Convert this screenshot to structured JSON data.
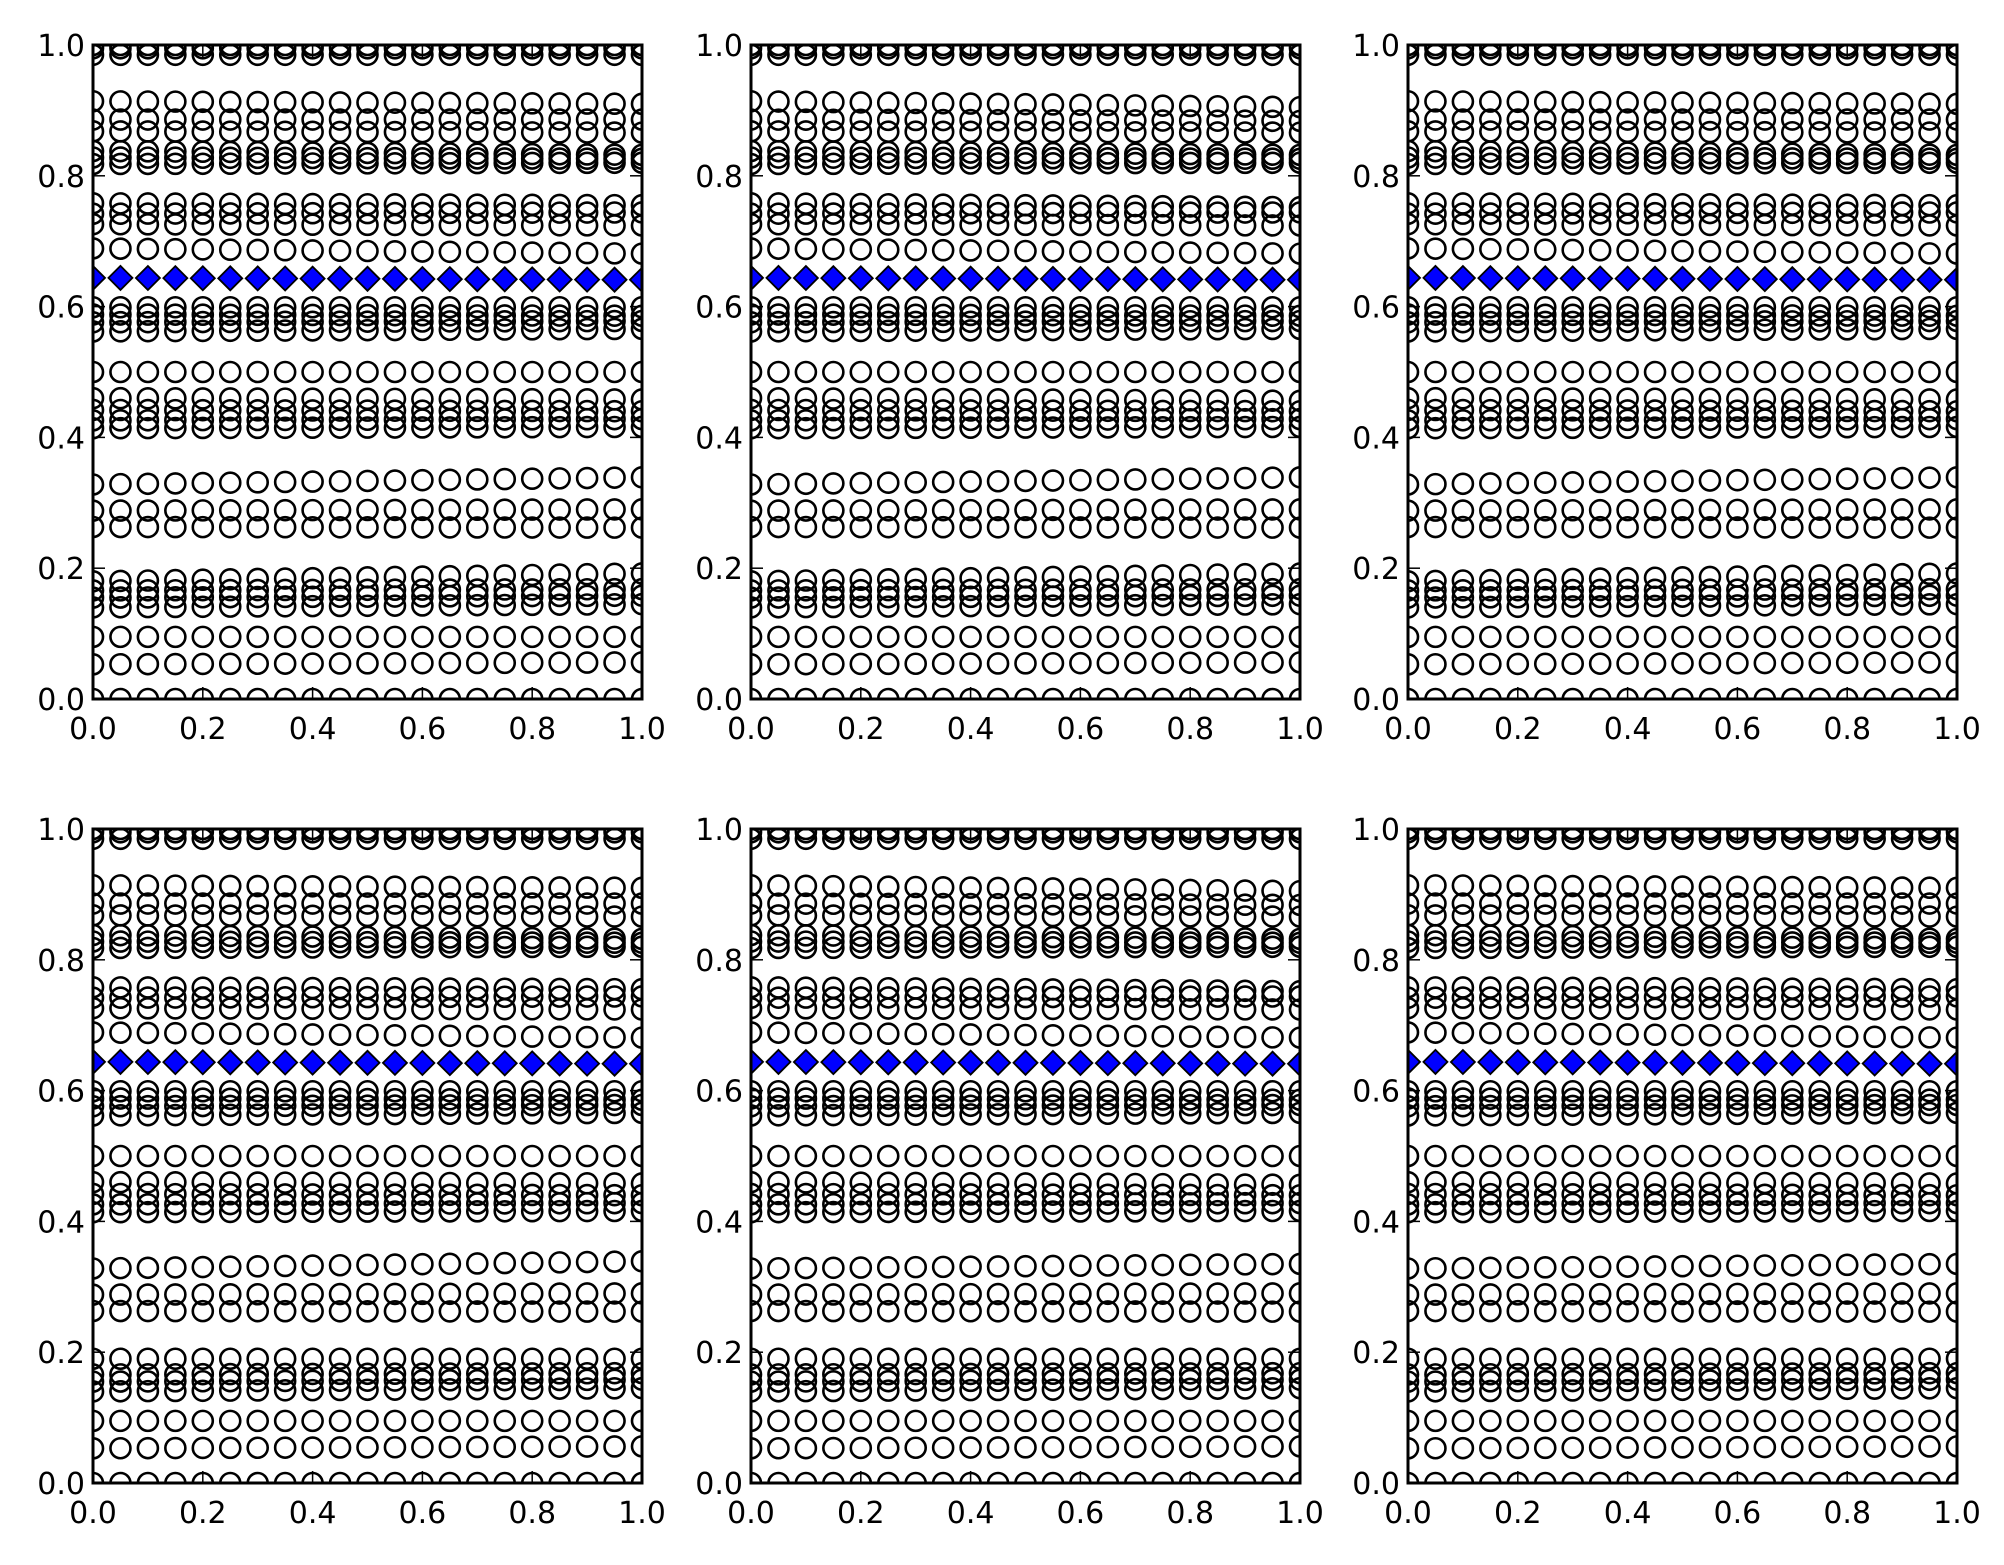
{
  "chart_data": [
    {
      "type": "scatter",
      "xlim": [
        0,
        1
      ],
      "ylim": [
        0,
        1
      ],
      "grid": false,
      "xticks": [
        "0.0",
        "0.2",
        "0.4",
        "0.6",
        "0.8",
        "1.0"
      ],
      "yticks": [
        "0.0",
        "0.2",
        "0.4",
        "0.6",
        "0.8",
        "1.0"
      ],
      "x": [
        0,
        0.05,
        0.1,
        0.15,
        0.2,
        0.25,
        0.3,
        0.35,
        0.4,
        0.45,
        0.5,
        0.55,
        0.6,
        0.65,
        0.7,
        0.75,
        0.8,
        0.85,
        0.9,
        0.95,
        1.0
      ],
      "circle_rows_y_at_x0_x1": [
        [
          1.0,
          1.0
        ],
        [
          0.995,
          0.995
        ],
        [
          0.985,
          0.985
        ],
        [
          0.914,
          0.91
        ],
        [
          0.886,
          0.886
        ],
        [
          0.868,
          0.866
        ],
        [
          0.838,
          0.832
        ],
        [
          0.828,
          0.826
        ],
        [
          0.818,
          0.82
        ],
        [
          0.758,
          0.755
        ],
        [
          0.742,
          0.744
        ],
        [
          0.726,
          0.724
        ],
        [
          0.689,
          0.681
        ],
        [
          0.599,
          0.599
        ],
        [
          0.588,
          0.586
        ],
        [
          0.576,
          0.578
        ],
        [
          0.562,
          0.566
        ],
        [
          0.5,
          0.5
        ],
        [
          0.46,
          0.458
        ],
        [
          0.442,
          0.44
        ],
        [
          0.426,
          0.428
        ],
        [
          0.414,
          0.416
        ],
        [
          0.328,
          0.339
        ],
        [
          0.288,
          0.29
        ],
        [
          0.263,
          0.262
        ],
        [
          0.18,
          0.192
        ],
        [
          0.166,
          0.168
        ],
        [
          0.155,
          0.158
        ],
        [
          0.14,
          0.145
        ],
        [
          0.095,
          0.095
        ],
        [
          0.053,
          0.056
        ],
        [
          0.0,
          0.0
        ]
      ],
      "diamond_row_y_at_x0_x1": [
        0.644,
        0.641
      ],
      "circle_color": "#000000",
      "diamond_color": "#0000ff"
    },
    {
      "type": "scatter",
      "xlim": [
        0,
        1
      ],
      "ylim": [
        0,
        1
      ],
      "grid": false,
      "xticks": [
        "0.0",
        "0.2",
        "0.4",
        "0.6",
        "0.8",
        "1.0"
      ],
      "yticks": [
        "0.0",
        "0.2",
        "0.4",
        "0.6",
        "0.8",
        "1.0"
      ],
      "x": [
        0,
        0.05,
        0.1,
        0.15,
        0.2,
        0.25,
        0.3,
        0.35,
        0.4,
        0.45,
        0.5,
        0.55,
        0.6,
        0.65,
        0.7,
        0.75,
        0.8,
        0.85,
        0.9,
        0.95,
        1.0
      ],
      "circle_rows_y_at_x0_x1": [
        [
          1.0,
          1.0
        ],
        [
          0.995,
          0.995
        ],
        [
          0.985,
          0.985
        ],
        [
          0.914,
          0.905
        ],
        [
          0.886,
          0.884
        ],
        [
          0.868,
          0.866
        ],
        [
          0.838,
          0.832
        ],
        [
          0.828,
          0.826
        ],
        [
          0.818,
          0.82
        ],
        [
          0.758,
          0.752
        ],
        [
          0.742,
          0.744
        ],
        [
          0.726,
          0.724
        ],
        [
          0.689,
          0.681
        ],
        [
          0.599,
          0.599
        ],
        [
          0.588,
          0.586
        ],
        [
          0.576,
          0.578
        ],
        [
          0.562,
          0.566
        ],
        [
          0.5,
          0.5
        ],
        [
          0.46,
          0.456
        ],
        [
          0.442,
          0.44
        ],
        [
          0.426,
          0.428
        ],
        [
          0.414,
          0.416
        ],
        [
          0.328,
          0.339
        ],
        [
          0.288,
          0.29
        ],
        [
          0.263,
          0.262
        ],
        [
          0.18,
          0.192
        ],
        [
          0.166,
          0.168
        ],
        [
          0.155,
          0.158
        ],
        [
          0.14,
          0.145
        ],
        [
          0.095,
          0.095
        ],
        [
          0.053,
          0.056
        ],
        [
          0.0,
          0.0
        ]
      ],
      "diamond_row_y_at_x0_x1": [
        0.644,
        0.641
      ],
      "circle_color": "#000000",
      "diamond_color": "#0000ff"
    },
    {
      "type": "scatter",
      "xlim": [
        0,
        1
      ],
      "ylim": [
        0,
        1
      ],
      "grid": false,
      "xticks": [
        "0.0",
        "0.2",
        "0.4",
        "0.6",
        "0.8",
        "1.0"
      ],
      "yticks": [
        "0.0",
        "0.2",
        "0.4",
        "0.6",
        "0.8",
        "1.0"
      ],
      "x": [
        0,
        0.05,
        0.1,
        0.15,
        0.2,
        0.25,
        0.3,
        0.35,
        0.4,
        0.45,
        0.5,
        0.55,
        0.6,
        0.65,
        0.7,
        0.75,
        0.8,
        0.85,
        0.9,
        0.95,
        1.0
      ],
      "circle_rows_y_at_x0_x1": [
        [
          1.0,
          1.0
        ],
        [
          0.995,
          0.995
        ],
        [
          0.985,
          0.985
        ],
        [
          0.914,
          0.91
        ],
        [
          0.886,
          0.886
        ],
        [
          0.868,
          0.866
        ],
        [
          0.838,
          0.832
        ],
        [
          0.828,
          0.826
        ],
        [
          0.818,
          0.82
        ],
        [
          0.758,
          0.755
        ],
        [
          0.742,
          0.744
        ],
        [
          0.726,
          0.724
        ],
        [
          0.689,
          0.681
        ],
        [
          0.599,
          0.599
        ],
        [
          0.588,
          0.586
        ],
        [
          0.576,
          0.578
        ],
        [
          0.562,
          0.566
        ],
        [
          0.5,
          0.5
        ],
        [
          0.46,
          0.458
        ],
        [
          0.442,
          0.44
        ],
        [
          0.426,
          0.428
        ],
        [
          0.414,
          0.416
        ],
        [
          0.328,
          0.339
        ],
        [
          0.288,
          0.29
        ],
        [
          0.263,
          0.262
        ],
        [
          0.18,
          0.192
        ],
        [
          0.166,
          0.168
        ],
        [
          0.155,
          0.158
        ],
        [
          0.14,
          0.145
        ],
        [
          0.095,
          0.095
        ],
        [
          0.053,
          0.056
        ],
        [
          0.0,
          0.0
        ]
      ],
      "diamond_row_y_at_x0_x1": [
        0.644,
        0.641
      ],
      "circle_color": "#000000",
      "diamond_color": "#0000ff"
    },
    {
      "type": "scatter",
      "xlim": [
        0,
        1
      ],
      "ylim": [
        0,
        1
      ],
      "grid": false,
      "xticks": [
        "0.0",
        "0.2",
        "0.4",
        "0.6",
        "0.8",
        "1.0"
      ],
      "yticks": [
        "0.0",
        "0.2",
        "0.4",
        "0.6",
        "0.8",
        "1.0"
      ],
      "x": [
        0,
        0.05,
        0.1,
        0.15,
        0.2,
        0.25,
        0.3,
        0.35,
        0.4,
        0.45,
        0.5,
        0.55,
        0.6,
        0.65,
        0.7,
        0.75,
        0.8,
        0.85,
        0.9,
        0.95,
        1.0
      ],
      "circle_rows_y_at_x0_x1": [
        [
          1.0,
          1.0
        ],
        [
          0.995,
          0.995
        ],
        [
          0.985,
          0.985
        ],
        [
          0.914,
          0.91
        ],
        [
          0.886,
          0.886
        ],
        [
          0.868,
          0.866
        ],
        [
          0.838,
          0.832
        ],
        [
          0.828,
          0.826
        ],
        [
          0.818,
          0.82
        ],
        [
          0.758,
          0.755
        ],
        [
          0.742,
          0.744
        ],
        [
          0.726,
          0.724
        ],
        [
          0.689,
          0.681
        ],
        [
          0.599,
          0.599
        ],
        [
          0.588,
          0.586
        ],
        [
          0.576,
          0.578
        ],
        [
          0.562,
          0.566
        ],
        [
          0.5,
          0.5
        ],
        [
          0.46,
          0.458
        ],
        [
          0.442,
          0.44
        ],
        [
          0.426,
          0.428
        ],
        [
          0.414,
          0.416
        ],
        [
          0.328,
          0.339
        ],
        [
          0.288,
          0.29
        ],
        [
          0.263,
          0.262
        ],
        [
          0.19,
          0.19
        ],
        [
          0.166,
          0.168
        ],
        [
          0.155,
          0.158
        ],
        [
          0.14,
          0.145
        ],
        [
          0.095,
          0.095
        ],
        [
          0.053,
          0.056
        ],
        [
          0.0,
          0.0
        ]
      ],
      "diamond_row_y_at_x0_x1": [
        0.644,
        0.641
      ],
      "circle_color": "#000000",
      "diamond_color": "#0000ff"
    },
    {
      "type": "scatter",
      "xlim": [
        0,
        1
      ],
      "ylim": [
        0,
        1
      ],
      "grid": false,
      "xticks": [
        "0.0",
        "0.2",
        "0.4",
        "0.6",
        "0.8",
        "1.0"
      ],
      "yticks": [
        "0.0",
        "0.2",
        "0.4",
        "0.6",
        "0.8",
        "1.0"
      ],
      "x": [
        0,
        0.05,
        0.1,
        0.15,
        0.2,
        0.25,
        0.3,
        0.35,
        0.4,
        0.45,
        0.5,
        0.55,
        0.6,
        0.65,
        0.7,
        0.75,
        0.8,
        0.85,
        0.9,
        0.95,
        1.0
      ],
      "circle_rows_y_at_x0_x1": [
        [
          1.0,
          1.0
        ],
        [
          0.995,
          0.995
        ],
        [
          0.985,
          0.985
        ],
        [
          0.914,
          0.905
        ],
        [
          0.886,
          0.884
        ],
        [
          0.868,
          0.866
        ],
        [
          0.838,
          0.832
        ],
        [
          0.828,
          0.826
        ],
        [
          0.818,
          0.82
        ],
        [
          0.758,
          0.752
        ],
        [
          0.742,
          0.744
        ],
        [
          0.726,
          0.724
        ],
        [
          0.689,
          0.681
        ],
        [
          0.599,
          0.599
        ],
        [
          0.588,
          0.586
        ],
        [
          0.576,
          0.578
        ],
        [
          0.562,
          0.566
        ],
        [
          0.5,
          0.5
        ],
        [
          0.46,
          0.456
        ],
        [
          0.442,
          0.44
        ],
        [
          0.426,
          0.428
        ],
        [
          0.414,
          0.416
        ],
        [
          0.328,
          0.335
        ],
        [
          0.288,
          0.29
        ],
        [
          0.263,
          0.262
        ],
        [
          0.19,
          0.19
        ],
        [
          0.166,
          0.168
        ],
        [
          0.155,
          0.158
        ],
        [
          0.14,
          0.145
        ],
        [
          0.095,
          0.095
        ],
        [
          0.053,
          0.056
        ],
        [
          0.0,
          0.0
        ]
      ],
      "diamond_row_y_at_x0_x1": [
        0.644,
        0.641
      ],
      "circle_color": "#000000",
      "diamond_color": "#0000ff"
    },
    {
      "type": "scatter",
      "xlim": [
        0,
        1
      ],
      "ylim": [
        0,
        1
      ],
      "grid": false,
      "xticks": [
        "0.0",
        "0.2",
        "0.4",
        "0.6",
        "0.8",
        "1.0"
      ],
      "yticks": [
        "0.0",
        "0.2",
        "0.4",
        "0.6",
        "0.8",
        "1.0"
      ],
      "x": [
        0,
        0.05,
        0.1,
        0.15,
        0.2,
        0.25,
        0.3,
        0.35,
        0.4,
        0.45,
        0.5,
        0.55,
        0.6,
        0.65,
        0.7,
        0.75,
        0.8,
        0.85,
        0.9,
        0.95,
        1.0
      ],
      "circle_rows_y_at_x0_x1": [
        [
          1.0,
          1.0
        ],
        [
          0.995,
          0.995
        ],
        [
          0.985,
          0.985
        ],
        [
          0.914,
          0.91
        ],
        [
          0.886,
          0.886
        ],
        [
          0.868,
          0.866
        ],
        [
          0.838,
          0.832
        ],
        [
          0.828,
          0.826
        ],
        [
          0.818,
          0.82
        ],
        [
          0.758,
          0.755
        ],
        [
          0.742,
          0.744
        ],
        [
          0.726,
          0.724
        ],
        [
          0.689,
          0.681
        ],
        [
          0.599,
          0.599
        ],
        [
          0.588,
          0.586
        ],
        [
          0.576,
          0.578
        ],
        [
          0.562,
          0.566
        ],
        [
          0.5,
          0.5
        ],
        [
          0.46,
          0.458
        ],
        [
          0.442,
          0.44
        ],
        [
          0.426,
          0.428
        ],
        [
          0.414,
          0.416
        ],
        [
          0.328,
          0.335
        ],
        [
          0.288,
          0.29
        ],
        [
          0.263,
          0.262
        ],
        [
          0.19,
          0.19
        ],
        [
          0.166,
          0.168
        ],
        [
          0.155,
          0.158
        ],
        [
          0.14,
          0.145
        ],
        [
          0.095,
          0.095
        ],
        [
          0.053,
          0.056
        ],
        [
          0.0,
          0.0
        ]
      ],
      "diamond_row_y_at_x0_x1": [
        0.644,
        0.641
      ],
      "circle_color": "#000000",
      "diamond_color": "#0000ff"
    }
  ]
}
